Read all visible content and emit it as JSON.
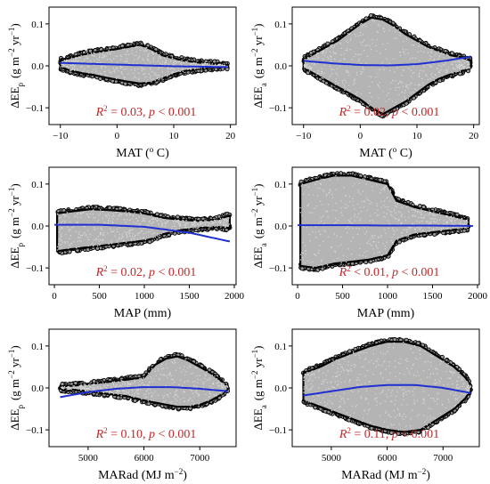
{
  "figure": {
    "panels": [
      {
        "id": "mat-p",
        "ylabel_main": "ΔEE",
        "ylabel_sub": "p",
        "ylabel_unit": "(g m",
        "ylabel_unit2": " yr",
        "xlabel": "MAT (",
        "xlabel_sup": "o",
        "xlabel_end": " C)",
        "stat": {
          "r2": "R",
          "r2_sup": "2",
          "text": " = 0.03, ",
          "p": "p",
          "p_text": " < 0.001"
        }
      },
      {
        "id": "mat-a",
        "ylabel_main": "ΔEE",
        "ylabel_sub": "a",
        "ylabel_unit": "(g m",
        "ylabel_unit2": " yr",
        "xlabel": "MAT (",
        "xlabel_sup": "o",
        "xlabel_end": " C)",
        "stat": {
          "r2": "R",
          "r2_sup": "2",
          "text": " = 0.02, ",
          "p": "p",
          "p_text": " < 0.001"
        }
      },
      {
        "id": "map-p",
        "ylabel_main": "ΔEE",
        "ylabel_sub": "p",
        "ylabel_unit": "(g m",
        "ylabel_unit2": " yr",
        "xlabel": "MAP (mm)",
        "xlabel_sup": "",
        "xlabel_end": "",
        "stat": {
          "r2": "R",
          "r2_sup": "2",
          "text": " = 0.02, ",
          "p": "p",
          "p_text": " < 0.001"
        }
      },
      {
        "id": "map-a",
        "ylabel_main": "ΔEE",
        "ylabel_sub": "a",
        "ylabel_unit": "(g m",
        "ylabel_unit2": " yr",
        "xlabel": "MAP (mm)",
        "xlabel_sup": "",
        "xlabel_end": "",
        "stat": {
          "r2": "R",
          "r2_sup": "2",
          "text": " < 0.01, ",
          "p": "p",
          "p_text": " < 0.001"
        }
      },
      {
        "id": "marad-p",
        "ylabel_main": "ΔEE",
        "ylabel_sub": "p",
        "ylabel_unit": "(g m",
        "ylabel_unit2": " yr",
        "xlabel": "MARad (MJ m",
        "xlabel_sup": "−2",
        "xlabel_end": ")",
        "stat": {
          "r2": "R",
          "r2_sup": "2",
          "text": " = 0.10, ",
          "p": "p",
          "p_text": " < 0.001"
        }
      },
      {
        "id": "marad-a",
        "ylabel_main": "ΔEE",
        "ylabel_sub": "a",
        "ylabel_unit": "(g m",
        "ylabel_unit2": " yr",
        "xlabel": "MARad (MJ m",
        "xlabel_sup": "−2",
        "xlabel_end": ")",
        "stat": {
          "r2": "R",
          "r2_sup": "2",
          "text": " = 0.11, ",
          "p": "p",
          "p_text": " < 0.001"
        }
      }
    ],
    "sup_minus2": "−2",
    "sup_minus1": "−1",
    "close_paren": ")"
  },
  "chart_data": [
    {
      "type": "scatter",
      "panel": "mat-p",
      "xlim": [
        -12,
        21
      ],
      "ylim": [
        -0.14,
        0.14
      ],
      "xticks": [
        -10,
        0,
        10,
        20
      ],
      "xtick_labels": [
        "−10",
        "0",
        "10",
        "20"
      ],
      "yticks": [
        -0.1,
        0.0,
        0.1
      ],
      "ytick_labels": [
        "−0.1",
        "0.0",
        "0.1"
      ],
      "envelope": {
        "x": [
          -10,
          -8,
          -6,
          -4,
          -2,
          0,
          2,
          4,
          6,
          8,
          10,
          12,
          14,
          16,
          18,
          19.5
        ],
        "upper": [
          0.012,
          0.02,
          0.027,
          0.032,
          0.036,
          0.04,
          0.045,
          0.05,
          0.04,
          0.025,
          0.018,
          0.012,
          0.008,
          0.006,
          0.004,
          0.002
        ],
        "lower": [
          -0.003,
          -0.012,
          -0.018,
          -0.022,
          -0.028,
          -0.033,
          -0.038,
          -0.042,
          -0.04,
          -0.03,
          -0.02,
          -0.012,
          -0.008,
          -0.005,
          -0.003,
          -0.002
        ]
      },
      "fit": {
        "x": [
          -10,
          -5,
          0,
          5,
          10,
          15,
          19.5
        ],
        "y": [
          0.007,
          0.005,
          0.003,
          0.001,
          -0.001,
          -0.002,
          -0.003
        ]
      },
      "fit_color": "#1f2fd0",
      "point_color": "#b4b4b4"
    },
    {
      "type": "scatter",
      "panel": "mat-a",
      "xlim": [
        -12,
        21
      ],
      "ylim": [
        -0.14,
        0.14
      ],
      "xticks": [
        -10,
        0,
        10,
        20
      ],
      "xtick_labels": [
        "−10",
        "0",
        "10",
        "20"
      ],
      "yticks": [
        -0.1,
        0.0,
        0.1
      ],
      "ytick_labels": [
        "−0.1",
        "0.0",
        "0.1"
      ],
      "envelope": {
        "x": [
          -10,
          -8,
          -6,
          -4,
          -2,
          0,
          2,
          4,
          6,
          8,
          10,
          12,
          14,
          16,
          18,
          19.5
        ],
        "upper": [
          0.015,
          0.03,
          0.045,
          0.06,
          0.08,
          0.1,
          0.115,
          0.11,
          0.095,
          0.075,
          0.06,
          0.045,
          0.035,
          0.025,
          0.02,
          0.012
        ],
        "lower": [
          -0.005,
          -0.02,
          -0.035,
          -0.05,
          -0.065,
          -0.08,
          -0.1,
          -0.115,
          -0.1,
          -0.085,
          -0.065,
          -0.045,
          -0.03,
          -0.02,
          -0.012,
          -0.005
        ]
      },
      "fit": {
        "x": [
          -10,
          -5,
          0,
          5,
          10,
          15,
          19.5
        ],
        "y": [
          0.012,
          0.006,
          0.002,
          0.001,
          0.004,
          0.012,
          0.022
        ]
      },
      "fit_color": "#1f2fd0",
      "point_color": "#b4b4b4"
    },
    {
      "type": "scatter",
      "panel": "map-p",
      "xlim": [
        -60,
        2020
      ],
      "ylim": [
        -0.14,
        0.14
      ],
      "xticks": [
        0,
        500,
        1000,
        1500,
        2000
      ],
      "xtick_labels": [
        "0",
        "500",
        "1000",
        "1500",
        "2000"
      ],
      "yticks": [
        -0.1,
        0.0,
        0.1
      ],
      "ytick_labels": [
        "−0.1",
        "0.0",
        "0.1"
      ],
      "envelope": {
        "x": [
          30,
          200,
          400,
          600,
          800,
          1000,
          1100,
          1200,
          1400,
          1600,
          1800,
          1950
        ],
        "upper": [
          0.03,
          0.035,
          0.04,
          0.038,
          0.035,
          0.03,
          0.025,
          0.02,
          0.015,
          0.012,
          0.015,
          0.025
        ],
        "lower": [
          -0.06,
          -0.055,
          -0.05,
          -0.045,
          -0.04,
          -0.035,
          -0.03,
          -0.02,
          -0.01,
          -0.005,
          -0.002,
          -0.005
        ]
      },
      "fit": {
        "x": [
          0,
          500,
          1000,
          1500,
          1950
        ],
        "y": [
          0.003,
          0.003,
          -0.002,
          -0.016,
          -0.037
        ]
      },
      "fit_color": "#1f2fd0",
      "point_color": "#b4b4b4"
    },
    {
      "type": "scatter",
      "panel": "map-a",
      "xlim": [
        -60,
        2020
      ],
      "ylim": [
        -0.14,
        0.14
      ],
      "xticks": [
        0,
        500,
        1000,
        1500,
        2000
      ],
      "xtick_labels": [
        "0",
        "500",
        "1000",
        "1500",
        "2000"
      ],
      "yticks": [
        -0.1,
        0.0,
        0.1
      ],
      "ytick_labels": [
        "−0.1",
        "0.0",
        "0.1"
      ],
      "envelope": {
        "x": [
          30,
          200,
          400,
          600,
          800,
          1000,
          1100,
          1300,
          1500,
          1700,
          1900
        ],
        "upper": [
          0.1,
          0.11,
          0.12,
          0.12,
          0.11,
          0.1,
          0.06,
          0.045,
          0.035,
          0.025,
          0.015
        ],
        "lower": [
          -0.095,
          -0.1,
          -0.09,
          -0.085,
          -0.08,
          -0.07,
          -0.035,
          -0.02,
          -0.015,
          -0.01,
          -0.005
        ]
      },
      "fit": {
        "x": [
          0,
          500,
          1000,
          1500,
          1950
        ],
        "y": [
          0.002,
          0.002,
          0.001,
          0.001,
          0.0
        ]
      },
      "fit_color": "#1f2fd0",
      "point_color": "#b4b4b4"
    },
    {
      "type": "scatter",
      "panel": "marad-p",
      "xlim": [
        4300,
        7650
      ],
      "ylim": [
        -0.14,
        0.14
      ],
      "xticks": [
        5000,
        6000,
        7000
      ],
      "xtick_labels": [
        "5000",
        "6000",
        "7000"
      ],
      "yticks": [
        -0.1,
        0.0,
        0.1
      ],
      "ytick_labels": [
        "−0.1",
        "0.0",
        "0.1"
      ],
      "envelope": {
        "x": [
          4500,
          4800,
          5100,
          5400,
          5700,
          6000,
          6200,
          6400,
          6600,
          6800,
          7000,
          7200,
          7400,
          7500
        ],
        "upper": [
          0.003,
          0.006,
          0.01,
          0.015,
          0.02,
          0.025,
          0.055,
          0.07,
          0.075,
          0.065,
          0.05,
          0.035,
          0.015,
          0.003
        ],
        "lower": [
          -0.002,
          -0.005,
          -0.01,
          -0.015,
          -0.02,
          -0.03,
          -0.035,
          -0.04,
          -0.045,
          -0.045,
          -0.04,
          -0.03,
          -0.015,
          -0.003
        ]
      },
      "fit": {
        "x": [
          4500,
          5000,
          5500,
          6000,
          6500,
          7000,
          7500
        ],
        "y": [
          -0.022,
          -0.01,
          -0.002,
          0.002,
          0.002,
          -0.002,
          -0.008
        ]
      },
      "fit_color": "#1f2fd0",
      "point_color": "#b4b4b4"
    },
    {
      "type": "scatter",
      "panel": "marad-a",
      "xlim": [
        4300,
        7650
      ],
      "ylim": [
        -0.14,
        0.14
      ],
      "xticks": [
        5000,
        6000,
        7000
      ],
      "xtick_labels": [
        "5000",
        "6000",
        "7000"
      ],
      "yticks": [
        -0.1,
        0.0,
        0.1
      ],
      "ytick_labels": [
        "−0.1",
        "0.0",
        "0.1"
      ],
      "envelope": {
        "x": [
          4500,
          4800,
          5100,
          5400,
          5700,
          6000,
          6300,
          6600,
          6900,
          7200,
          7400,
          7500
        ],
        "upper": [
          0.035,
          0.05,
          0.07,
          0.085,
          0.1,
          0.11,
          0.11,
          0.1,
          0.075,
          0.05,
          0.025,
          0.005
        ],
        "lower": [
          -0.03,
          -0.045,
          -0.06,
          -0.075,
          -0.09,
          -0.1,
          -0.105,
          -0.1,
          -0.075,
          -0.05,
          -0.025,
          -0.005
        ]
      },
      "fit": {
        "x": [
          4500,
          5000,
          5500,
          6000,
          6500,
          7000,
          7500
        ],
        "y": [
          -0.018,
          -0.008,
          0.002,
          0.007,
          0.007,
          0.0,
          -0.012
        ]
      },
      "fit_color": "#1f2fd0",
      "point_color": "#b4b4b4"
    }
  ]
}
